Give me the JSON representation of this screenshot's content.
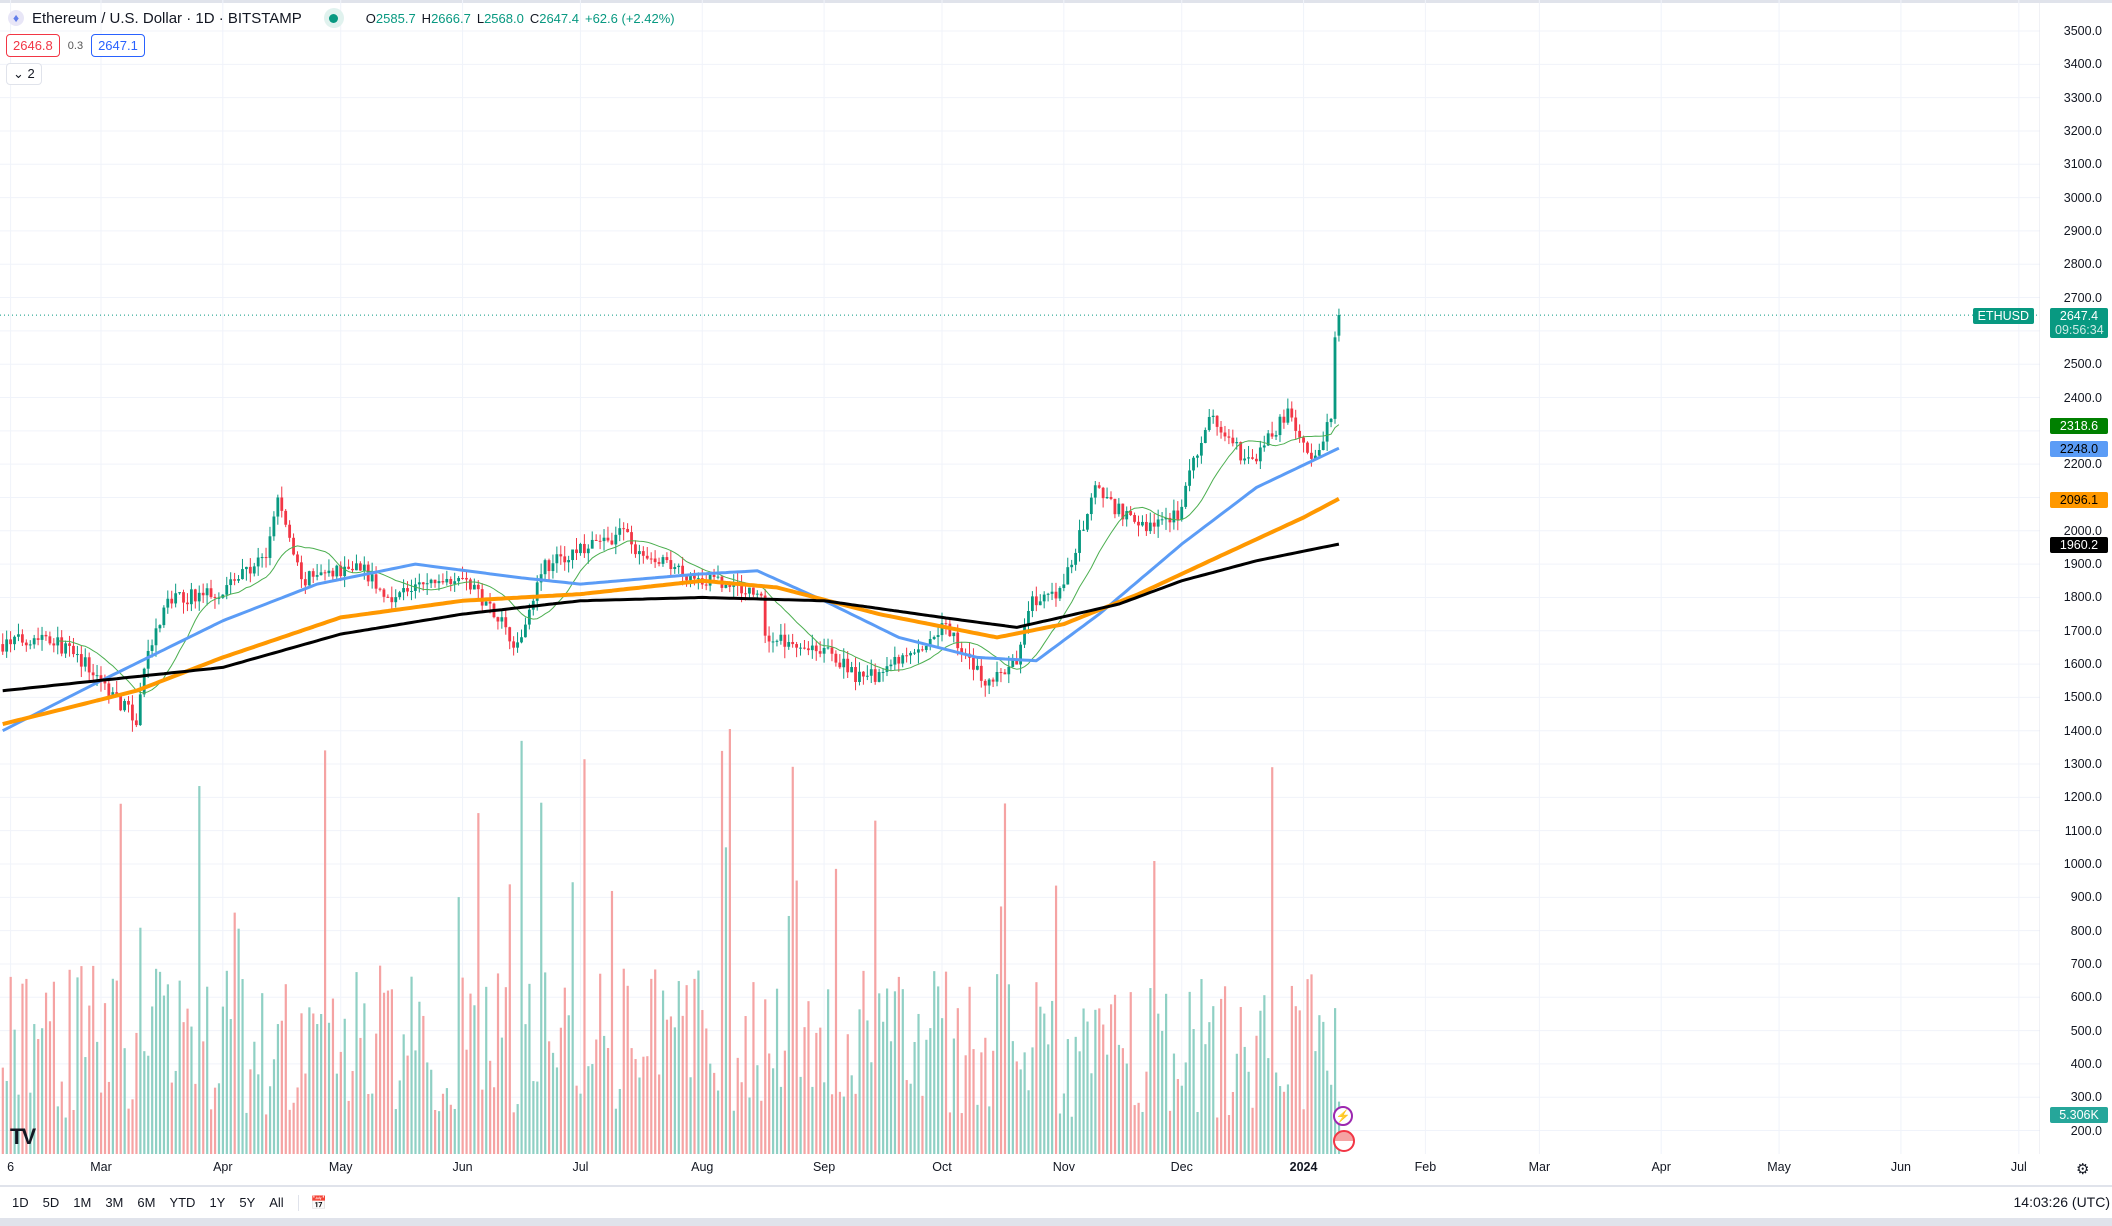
{
  "header": {
    "symbol": "Ethereum / U.S. Dollar · 1D · BITSTAMP",
    "icon": "ethereum-icon",
    "open_label": "O",
    "open": "2585.7",
    "high_label": "H",
    "high": "2666.7",
    "low_label": "L",
    "low": "2568.0",
    "close_label": "C",
    "close": "2647.4",
    "change": "+62.6 (+2.42%)"
  },
  "quote": {
    "bid": "2646.8",
    "spread": "0.3",
    "ask": "2647.1"
  },
  "indicators_toggle": "2",
  "price_axis": {
    "labels": [
      "3500.0",
      "3400.0",
      "3300.0",
      "3200.0",
      "3100.0",
      "3000.0",
      "2900.0",
      "2800.0",
      "2700.0",
      "2500.0",
      "2400.0",
      "2200.0",
      "2000.0",
      "1900.0",
      "1800.0",
      "1700.0",
      "1600.0",
      "1500.0",
      "1400.0",
      "1300.0",
      "1200.0",
      "1100.0",
      "1000.0",
      "900.0",
      "800.0",
      "700.0",
      "600.0",
      "500.0",
      "400.0",
      "300.0",
      "200.0"
    ]
  },
  "tags": {
    "symbol": "ETHUSD",
    "last": "2647.4",
    "countdown": "09:56:34",
    "ma_short": "2318.6",
    "ma_50": "2248.0",
    "ma_100": "2096.1",
    "ma_200": "1960.2",
    "volume": "5.306K"
  },
  "colors": {
    "up": "#089981",
    "down": "#f23645",
    "vol_up": "#8fd0c4",
    "vol_down": "#f5a3a3",
    "ma_short": "#4caf50",
    "ma_50": "#5b9cf6",
    "ma_100": "#ff9800",
    "ma_200": "#000000"
  },
  "time_axis": [
    {
      "label": "6",
      "date": "2023-02-06"
    },
    {
      "label": "Mar",
      "date": "2023-03-01"
    },
    {
      "label": "Apr",
      "date": "2023-04-01"
    },
    {
      "label": "May",
      "date": "2023-05-01"
    },
    {
      "label": "Jun",
      "date": "2023-06-01"
    },
    {
      "label": "Jul",
      "date": "2023-07-01"
    },
    {
      "label": "Aug",
      "date": "2023-08-01"
    },
    {
      "label": "Sep",
      "date": "2023-09-01"
    },
    {
      "label": "Oct",
      "date": "2023-10-01"
    },
    {
      "label": "Nov",
      "date": "2023-11-01"
    },
    {
      "label": "Dec",
      "date": "2023-12-01"
    },
    {
      "label": "2024",
      "date": "2024-01-01"
    },
    {
      "label": "Feb",
      "date": "2024-02-01"
    },
    {
      "label": "Mar",
      "date": "2024-03-01"
    },
    {
      "label": "Apr",
      "date": "2024-04-01"
    },
    {
      "label": "May",
      "date": "2024-05-01"
    },
    {
      "label": "Jun",
      "date": "2024-06-01"
    },
    {
      "label": "Jul",
      "date": "2024-07-01"
    }
  ],
  "ranges": [
    "1D",
    "5D",
    "1M",
    "3M",
    "6M",
    "YTD",
    "1Y",
    "5Y",
    "All"
  ],
  "clock": "14:03:26 (UTC)",
  "chart_data": {
    "type": "candlestick",
    "ylim": [
      200,
      3500
    ],
    "close_keypoints": [
      [
        "2023-02-04",
        1660
      ],
      [
        "2023-02-15",
        1690
      ],
      [
        "2023-02-25",
        1600
      ],
      [
        "2023-03-10",
        1430
      ],
      [
        "2023-03-12",
        1590
      ],
      [
        "2023-03-18",
        1790
      ],
      [
        "2023-03-31",
        1820
      ],
      [
        "2023-04-12",
        1920
      ],
      [
        "2023-04-15",
        2100
      ],
      [
        "2023-04-19",
        1930
      ],
      [
        "2023-04-21",
        1850
      ],
      [
        "2023-05-06",
        1900
      ],
      [
        "2023-05-12",
        1800
      ],
      [
        "2023-05-31",
        1870
      ],
      [
        "2023-06-10",
        1750
      ],
      [
        "2023-06-15",
        1650
      ],
      [
        "2023-06-21",
        1890
      ],
      [
        "2023-07-13",
        2000
      ],
      [
        "2023-07-15",
        1930
      ],
      [
        "2023-07-31",
        1860
      ],
      [
        "2023-08-16",
        1810
      ],
      [
        "2023-08-17",
        1680
      ],
      [
        "2023-08-31",
        1650
      ],
      [
        "2023-09-11",
        1550
      ],
      [
        "2023-09-30",
        1670
      ],
      [
        "2023-10-01",
        1730
      ],
      [
        "2023-10-12",
        1540
      ],
      [
        "2023-10-20",
        1600
      ],
      [
        "2023-10-23",
        1780
      ],
      [
        "2023-10-31",
        1810
      ],
      [
        "2023-11-09",
        2120
      ],
      [
        "2023-11-20",
        2010
      ],
      [
        "2023-11-30",
        2050
      ],
      [
        "2023-12-08",
        2350
      ],
      [
        "2023-12-18",
        2200
      ],
      [
        "2023-12-28",
        2350
      ],
      [
        "2024-01-03",
        2210
      ],
      [
        "2024-01-08",
        2330
      ],
      [
        "2024-01-09",
        2585
      ],
      [
        "2024-01-10",
        2647.4
      ]
    ],
    "ma_50": [
      [
        "2023-02-04",
        1400
      ],
      [
        "2023-03-01",
        1550
      ],
      [
        "2023-04-01",
        1730
      ],
      [
        "2023-04-25",
        1840
      ],
      [
        "2023-05-20",
        1900
      ],
      [
        "2023-06-15",
        1860
      ],
      [
        "2023-07-01",
        1840
      ],
      [
        "2023-07-31",
        1870
      ],
      [
        "2023-08-15",
        1880
      ],
      [
        "2023-09-01",
        1790
      ],
      [
        "2023-09-20",
        1680
      ],
      [
        "2023-10-10",
        1620
      ],
      [
        "2023-10-25",
        1610
      ],
      [
        "2023-11-10",
        1750
      ],
      [
        "2023-12-01",
        1960
      ],
      [
        "2023-12-20",
        2130
      ],
      [
        "2024-01-10",
        2248
      ]
    ],
    "ma_100": [
      [
        "2023-02-04",
        1420
      ],
      [
        "2023-03-10",
        1520
      ],
      [
        "2023-04-01",
        1620
      ],
      [
        "2023-05-01",
        1740
      ],
      [
        "2023-06-01",
        1790
      ],
      [
        "2023-07-01",
        1810
      ],
      [
        "2023-08-01",
        1850
      ],
      [
        "2023-08-20",
        1830
      ],
      [
        "2023-09-15",
        1750
      ],
      [
        "2023-10-15",
        1680
      ],
      [
        "2023-11-01",
        1720
      ],
      [
        "2023-11-20",
        1810
      ],
      [
        "2023-12-10",
        1920
      ],
      [
        "2024-01-01",
        2040
      ],
      [
        "2024-01-10",
        2096.1
      ]
    ],
    "ma_200": [
      [
        "2023-02-04",
        1520
      ],
      [
        "2023-04-01",
        1590
      ],
      [
        "2023-05-01",
        1690
      ],
      [
        "2023-06-01",
        1750
      ],
      [
        "2023-07-01",
        1790
      ],
      [
        "2023-08-01",
        1800
      ],
      [
        "2023-09-01",
        1790
      ],
      [
        "2023-10-01",
        1740
      ],
      [
        "2023-10-20",
        1710
      ],
      [
        "2023-11-15",
        1780
      ],
      [
        "2023-12-01",
        1850
      ],
      [
        "2023-12-20",
        1910
      ],
      [
        "2024-01-10",
        1960.2
      ]
    ]
  }
}
